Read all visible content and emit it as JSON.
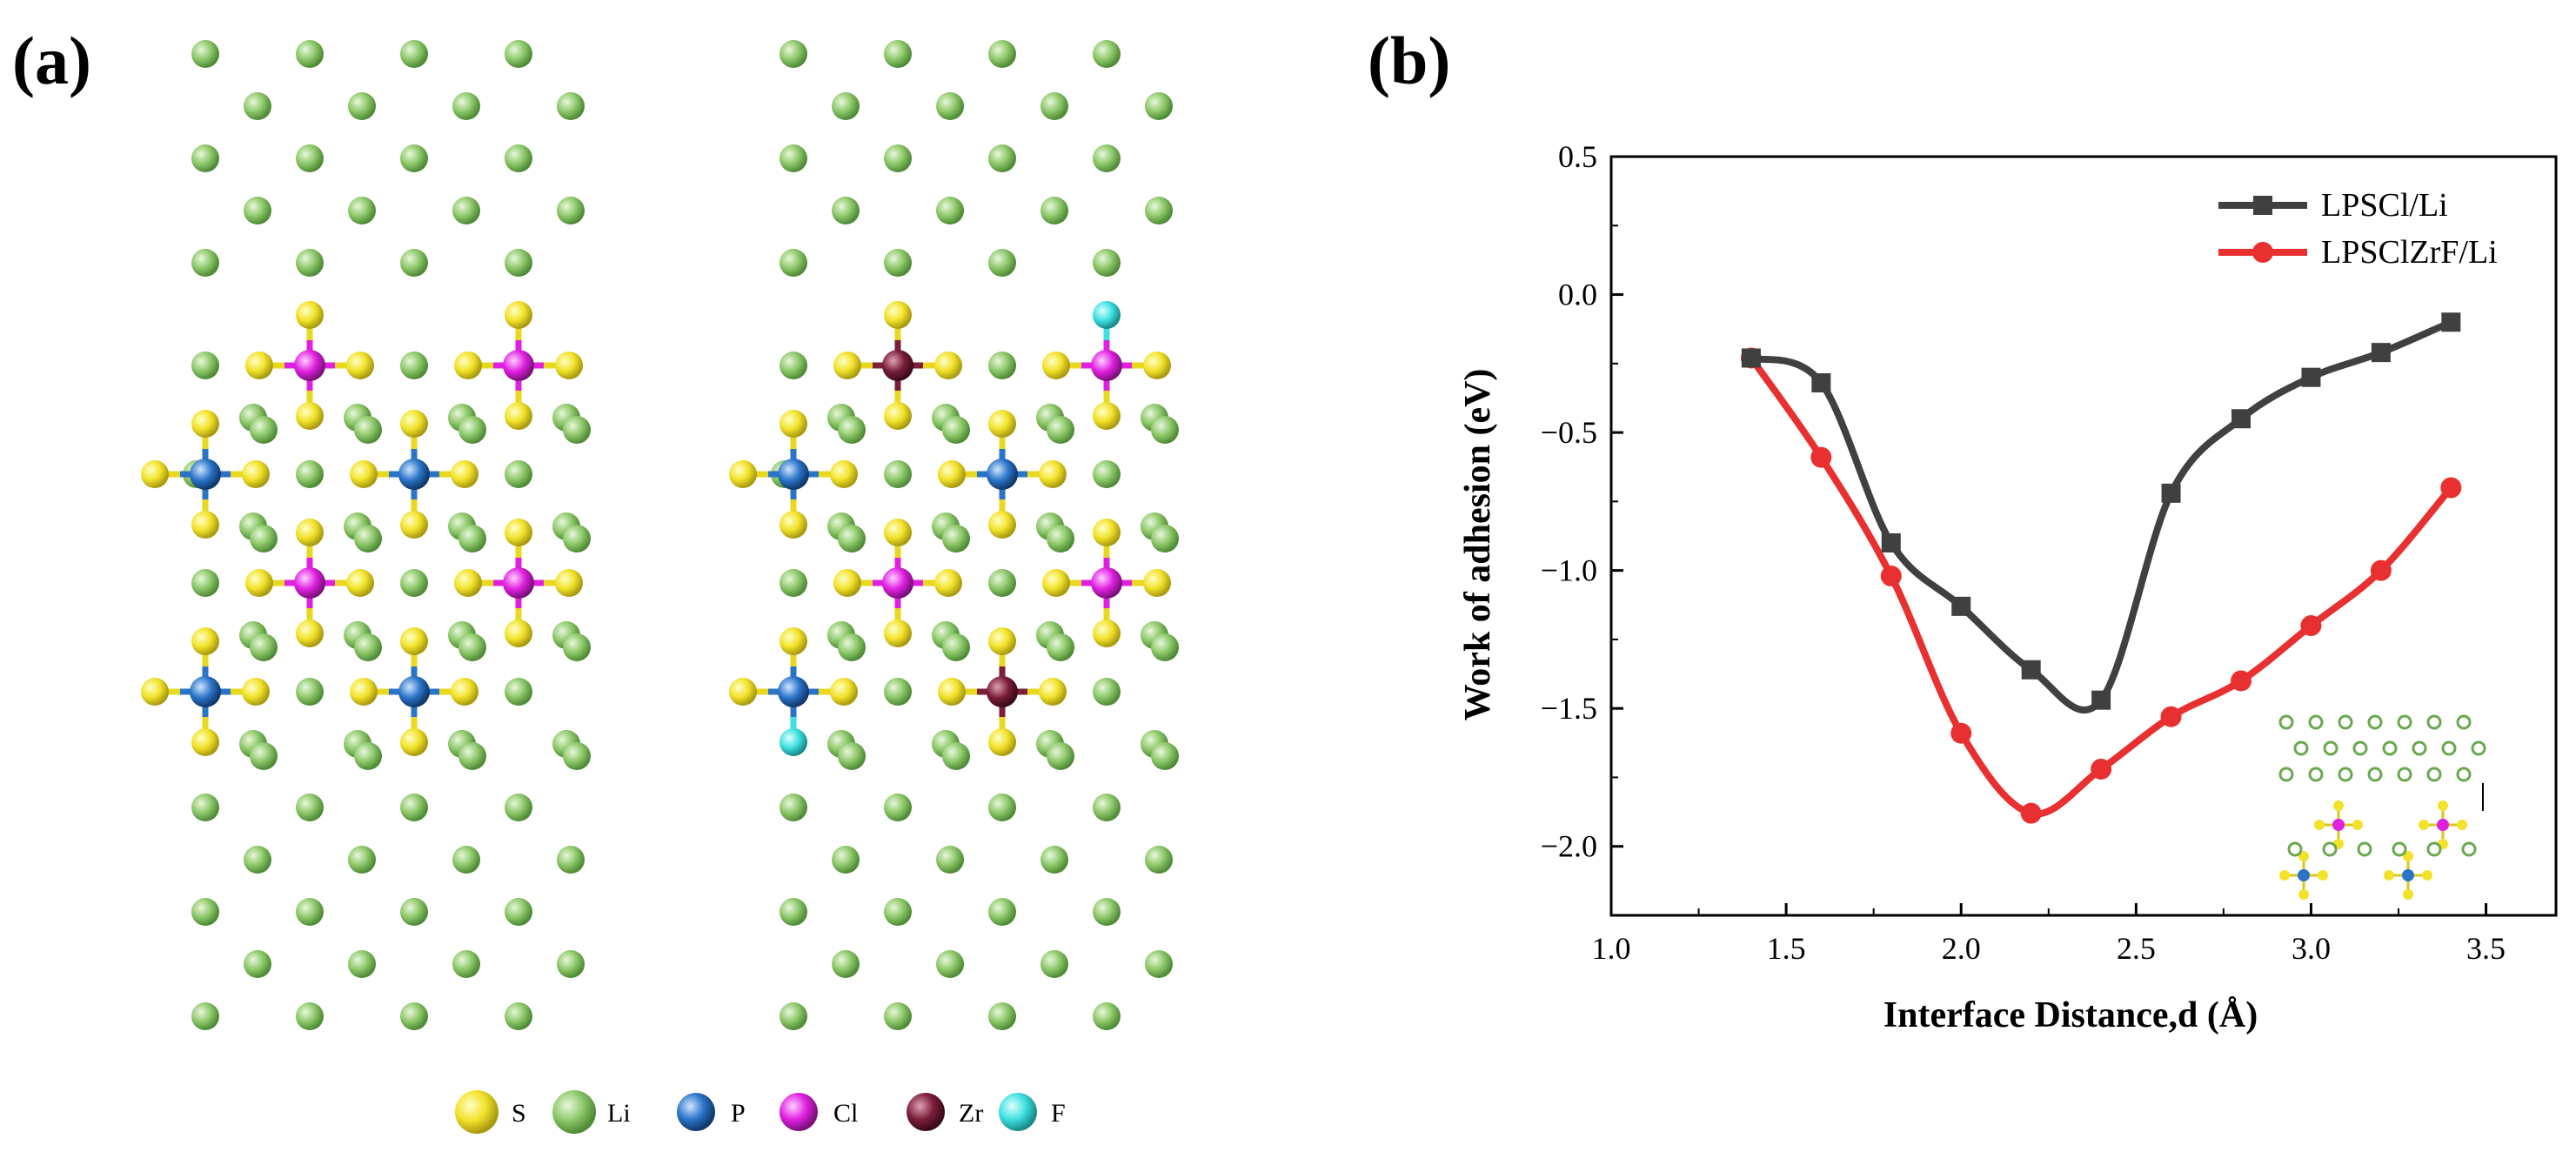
{
  "panel_labels": {
    "a": "(a)",
    "b": "(b)"
  },
  "element_key": [
    {
      "symbol": "S",
      "color": "#f2e22a"
    },
    {
      "symbol": "Li",
      "color": "#8ec86a"
    },
    {
      "symbol": "P",
      "color": "#2a74c8"
    },
    {
      "symbol": "Cl",
      "color": "#e020e0"
    },
    {
      "symbol": "Zr",
      "color": "#7a1e3a"
    },
    {
      "symbol": "F",
      "color": "#3ee0e0"
    }
  ],
  "chart_data": {
    "type": "line",
    "xlabel": "Interface Distance,d  (Å)",
    "ylabel": "Work of adhesion (eV)",
    "xlim": [
      1.0,
      3.7
    ],
    "ylim": [
      -2.25,
      0.5
    ],
    "xticks": [
      "1.0",
      "1.5",
      "2.0",
      "2.5",
      "3.0",
      "3.5"
    ],
    "xtick_values": [
      1.0,
      1.5,
      2.0,
      2.5,
      3.0,
      3.5
    ],
    "yticks": [
      "0.5",
      "0.0",
      "−0.5",
      "−1.0",
      "−1.5",
      "−2.0"
    ],
    "ytick_values": [
      0.5,
      0.0,
      -0.5,
      -1.0,
      -1.5,
      -2.0
    ],
    "legend_position": "top-right",
    "series": [
      {
        "name": "LPSCl/Li",
        "color": "#404040",
        "marker": "square",
        "x": [
          1.4,
          1.6,
          1.8,
          2.0,
          2.2,
          2.4,
          2.6,
          2.8,
          3.0,
          3.2,
          3.4
        ],
        "y": [
          -0.23,
          -0.32,
          -0.9,
          -1.13,
          -1.36,
          -1.47,
          -0.72,
          -0.45,
          -0.3,
          -0.21,
          -0.1
        ]
      },
      {
        "name": "LPSClZrF/Li",
        "color": "#e83030",
        "marker": "circle",
        "x": [
          1.4,
          1.6,
          1.8,
          2.0,
          2.2,
          2.4,
          2.6,
          2.8,
          3.0,
          3.2,
          3.4
        ],
        "y": [
          -0.23,
          -0.59,
          -1.02,
          -1.59,
          -1.88,
          -1.72,
          -1.53,
          -1.4,
          -1.2,
          -1.0,
          -0.7
        ]
      }
    ],
    "inset": "interface structure schematic with distance d"
  }
}
